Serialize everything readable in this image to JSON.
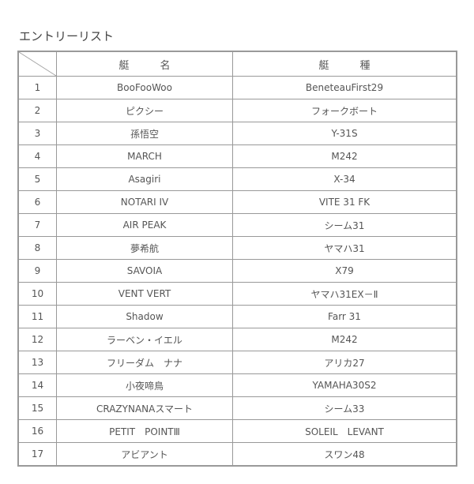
{
  "title": "エントリーリスト",
  "headers": {
    "name": "艇　　　名",
    "type": "艇　　　種"
  },
  "rows": [
    {
      "no": "1",
      "name": "BooFooWoo",
      "type": "BeneteauFirst29"
    },
    {
      "no": "2",
      "name": "ピクシー",
      "type": "フォークボート"
    },
    {
      "no": "3",
      "name": "孫悟空",
      "type": "Y-31S"
    },
    {
      "no": "4",
      "name": "MARCH",
      "type": "M242"
    },
    {
      "no": "5",
      "name": "Asagiri",
      "type": "X-34"
    },
    {
      "no": "6",
      "name": "NOTARI IV",
      "type": "VITE 31 FK"
    },
    {
      "no": "7",
      "name": "AIR PEAK",
      "type": "シーム31"
    },
    {
      "no": "8",
      "name": "夢希航",
      "type": "ヤマハ31"
    },
    {
      "no": "9",
      "name": "SAVOIA",
      "type": "X79"
    },
    {
      "no": "10",
      "name": "VENT VERT",
      "type": "ヤマハ31EX－Ⅱ"
    },
    {
      "no": "11",
      "name": "Shadow",
      "type": "Farr 31"
    },
    {
      "no": "12",
      "name": "ラーベン・イエル",
      "type": "M242"
    },
    {
      "no": "13",
      "name": "フリーダム　ナナ",
      "type": "アリカ27"
    },
    {
      "no": "14",
      "name": "小夜啼鳥",
      "type": "YAMAHA30S2"
    },
    {
      "no": "15",
      "name": "CRAZYNANAスマート",
      "type": "シーム33"
    },
    {
      "no": "16",
      "name": "PETIT　POINTⅢ",
      "type": "SOLEIL　LEVANT"
    },
    {
      "no": "17",
      "name": "アビアント",
      "type": "スワン48"
    }
  ]
}
